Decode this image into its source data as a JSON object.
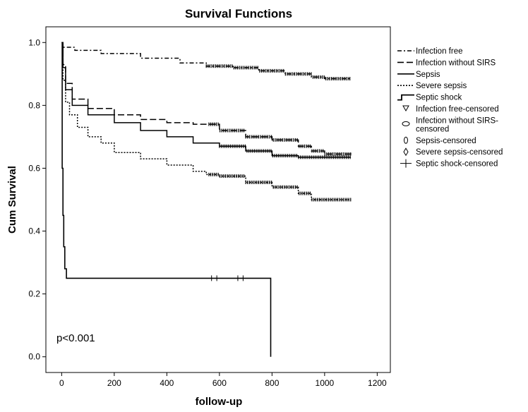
{
  "chart_data": {
    "type": "line",
    "title": "Survival Functions",
    "xlabel": "follow-up",
    "ylabel": "Cum Survival",
    "xlim": [
      -60,
      1250
    ],
    "ylim": [
      -0.05,
      1.05
    ],
    "x_ticks": [
      0,
      200,
      400,
      600,
      800,
      1000,
      1200
    ],
    "y_ticks": [
      0.0,
      0.2,
      0.4,
      0.6,
      0.8,
      1.0
    ],
    "grid": false,
    "legend_position": "right",
    "annotation": "p<0.001",
    "series": [
      {
        "name": "Infection free",
        "style": "dash-dot",
        "points": [
          [
            0,
            1.0
          ],
          [
            5,
            0.985
          ],
          [
            50,
            0.975
          ],
          [
            150,
            0.965
          ],
          [
            300,
            0.95
          ],
          [
            450,
            0.935
          ],
          [
            550,
            0.925
          ],
          [
            650,
            0.92
          ],
          [
            750,
            0.91
          ],
          [
            850,
            0.9
          ],
          [
            950,
            0.89
          ],
          [
            1000,
            0.885
          ],
          [
            1100,
            0.885
          ]
        ],
        "censored_from": 550
      },
      {
        "name": "Infection without SIRS",
        "style": "long-dash",
        "points": [
          [
            0,
            1.0
          ],
          [
            5,
            0.93
          ],
          [
            15,
            0.87
          ],
          [
            40,
            0.82
          ],
          [
            100,
            0.79
          ],
          [
            200,
            0.77
          ],
          [
            300,
            0.755
          ],
          [
            400,
            0.745
          ],
          [
            500,
            0.74
          ],
          [
            600,
            0.72
          ],
          [
            700,
            0.7
          ],
          [
            800,
            0.69
          ],
          [
            900,
            0.67
          ],
          [
            950,
            0.655
          ],
          [
            1000,
            0.645
          ],
          [
            1100,
            0.64
          ]
        ],
        "censored_from": 560
      },
      {
        "name": "Sepsis",
        "style": "solid",
        "points": [
          [
            0,
            1.0
          ],
          [
            5,
            0.92
          ],
          [
            15,
            0.85
          ],
          [
            40,
            0.8
          ],
          [
            100,
            0.77
          ],
          [
            200,
            0.745
          ],
          [
            300,
            0.72
          ],
          [
            400,
            0.7
          ],
          [
            500,
            0.68
          ],
          [
            600,
            0.67
          ],
          [
            700,
            0.655
          ],
          [
            800,
            0.64
          ],
          [
            900,
            0.635
          ],
          [
            1000,
            0.635
          ],
          [
            1100,
            0.635
          ]
        ],
        "censored_from": 600
      },
      {
        "name": "Severe sepsis",
        "style": "dotted",
        "points": [
          [
            0,
            1.0
          ],
          [
            5,
            0.88
          ],
          [
            15,
            0.81
          ],
          [
            30,
            0.77
          ],
          [
            60,
            0.73
          ],
          [
            100,
            0.7
          ],
          [
            150,
            0.68
          ],
          [
            200,
            0.65
          ],
          [
            300,
            0.63
          ],
          [
            400,
            0.61
          ],
          [
            500,
            0.59
          ],
          [
            550,
            0.58
          ],
          [
            600,
            0.575
          ],
          [
            700,
            0.555
          ],
          [
            800,
            0.54
          ],
          [
            900,
            0.52
          ],
          [
            950,
            0.5
          ],
          [
            1100,
            0.5
          ]
        ],
        "censored_from": 560
      },
      {
        "name": "Septic shock",
        "style": "solid",
        "points": [
          [
            0,
            1.0
          ],
          [
            2,
            0.6
          ],
          [
            5,
            0.45
          ],
          [
            8,
            0.35
          ],
          [
            12,
            0.28
          ],
          [
            18,
            0.25
          ],
          [
            795,
            0.25
          ],
          [
            795,
            0.0
          ]
        ],
        "censored_marks": [
          570,
          590,
          670,
          690
        ]
      }
    ],
    "legend_entries": [
      {
        "label": "Infection free",
        "symbol": "dash-dot"
      },
      {
        "label": "Infection without SIRS",
        "symbol": "long-dash"
      },
      {
        "label": "Sepsis",
        "symbol": "solid"
      },
      {
        "label": "Severe sepsis",
        "symbol": "dotted"
      },
      {
        "label": "Septic shock",
        "symbol": "step"
      },
      {
        "label": "Infection free-censored",
        "symbol": "triangle-down"
      },
      {
        "label": "Infection without SIRS-",
        "label2": "censored",
        "symbol": "ellipse"
      },
      {
        "label": "Sepsis-censored",
        "symbol": "tall-ellipse"
      },
      {
        "label": "Severe sepsis-censored",
        "symbol": "diamond"
      },
      {
        "label": "Septic shock-censored",
        "symbol": "plus"
      }
    ]
  }
}
